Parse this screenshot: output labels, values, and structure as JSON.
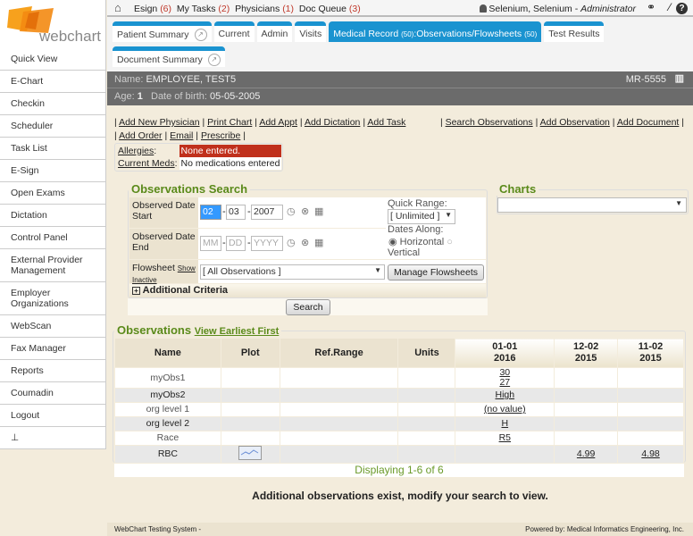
{
  "app": {
    "logo_text": "webchart",
    "brand_color": "#f7941d",
    "accent": "#1a93d0"
  },
  "sidebar": {
    "items": [
      {
        "label": "Quick View"
      },
      {
        "label": "E-Chart"
      },
      {
        "label": "Checkin"
      },
      {
        "label": "Scheduler"
      },
      {
        "label": "Task List"
      },
      {
        "label": "E-Sign"
      },
      {
        "label": "Open Exams"
      },
      {
        "label": "Dictation"
      },
      {
        "label": "Control Panel"
      },
      {
        "label": "External Provider Management"
      },
      {
        "label": "Employer Organizations"
      },
      {
        "label": "WebScan"
      },
      {
        "label": "Fax Manager"
      },
      {
        "label": "Reports"
      },
      {
        "label": "Coumadin"
      },
      {
        "label": "Logout"
      }
    ],
    "pin_icon": "pin-icon"
  },
  "topbar": {
    "esign": "Esign",
    "esign_count": "(6)",
    "tasks": "My Tasks",
    "tasks_count": "(2)",
    "physicians": "Physicians",
    "physicians_count": "(1)",
    "docqueue": "Doc Queue",
    "docqueue_count": "(3)",
    "user": "Selenium, Selenium - ",
    "role": "Administrator"
  },
  "tabs": {
    "patient_summary": "Patient Summary",
    "current": "Current",
    "admin": "Admin",
    "visits": "Visits",
    "medical_record": "Medical Record",
    "mr_count": "(50)",
    "observations": "Observations/Flowsheets",
    "obs_count": "(50)",
    "test_results": "Test Results",
    "document_summary": "Document Summary"
  },
  "patient": {
    "name_label": "Name:",
    "name": "EMPLOYEE, TEST5",
    "mrn": "MR-5555",
    "age_label": "Age:",
    "age": "1",
    "dob_label": "Date of birth:",
    "dob": "05-05-2005"
  },
  "links": {
    "left": [
      "Add New Physician",
      "Print Chart",
      "Add Appt",
      "Add Dictation",
      "Add Task"
    ],
    "left2": [
      "Add Order",
      "Email",
      "Prescribe"
    ],
    "right": [
      "Search Observations",
      "Add Observation",
      "Add Document"
    ]
  },
  "alerts": {
    "allergies_label": "Allergies",
    "allergies_value": "None entered.",
    "meds_label": "Current Meds",
    "meds_value": "No medications entered"
  },
  "search": {
    "title": "Observations Search",
    "start_label": "Observed Date Start",
    "start_mm": "02",
    "start_dd": "03",
    "start_yyyy": "2007",
    "end_label": "Observed Date End",
    "end_mm_ph": "MM",
    "end_dd_ph": "DD",
    "end_yyyy_ph": "YYYY",
    "quick_range_label": "Quick Range:",
    "quick_range": "[ Unlimited ]",
    "dates_along_label": "Dates Along:",
    "horizontal": "Horizontal",
    "vertical": "Vertical",
    "dates_along_selected": "Horizontal",
    "flowsheet_label": "Flowsheet",
    "show_inactive": "Show Inactive",
    "flowsheet_value": "[ All Observations ]",
    "manage_button": "Manage Flowsheets",
    "additional_criteria": "Additional Criteria",
    "search_button": "Search"
  },
  "charts": {
    "title": "Charts",
    "value": ""
  },
  "observations": {
    "title": "Observations",
    "view_earliest": "View Earliest First",
    "columns": [
      "Name",
      "Plot",
      "Ref.Range",
      "Units"
    ],
    "dates": [
      {
        "md": "01-01",
        "y": "2016"
      },
      {
        "md": "12-02",
        "y": "2015"
      },
      {
        "md": "11-02",
        "y": "2015"
      }
    ],
    "rows": [
      {
        "name": "myObs1",
        "v": [
          [
            "30",
            "27"
          ],
          [],
          []
        ]
      },
      {
        "name": "myObs2",
        "v": [
          [
            "High"
          ],
          [],
          []
        ]
      },
      {
        "name": "org level 1",
        "v": [
          [
            "(no value)"
          ],
          [],
          []
        ]
      },
      {
        "name": "org level 2",
        "v": [
          [
            "H"
          ],
          [],
          []
        ]
      },
      {
        "name": "Race",
        "v": [
          [
            "R5"
          ],
          [],
          []
        ]
      },
      {
        "name": "RBC",
        "plot": true,
        "v": [
          [],
          [
            "4.99"
          ],
          [
            "4.98"
          ]
        ]
      }
    ],
    "displaying": "Displaying 1-6 of 6",
    "additional_msg": "Additional observations exist, modify your search to view."
  },
  "footer": {
    "left": "WebChart Testing System -",
    "right": "Powered by: Medical Informatics Engineering, Inc."
  }
}
